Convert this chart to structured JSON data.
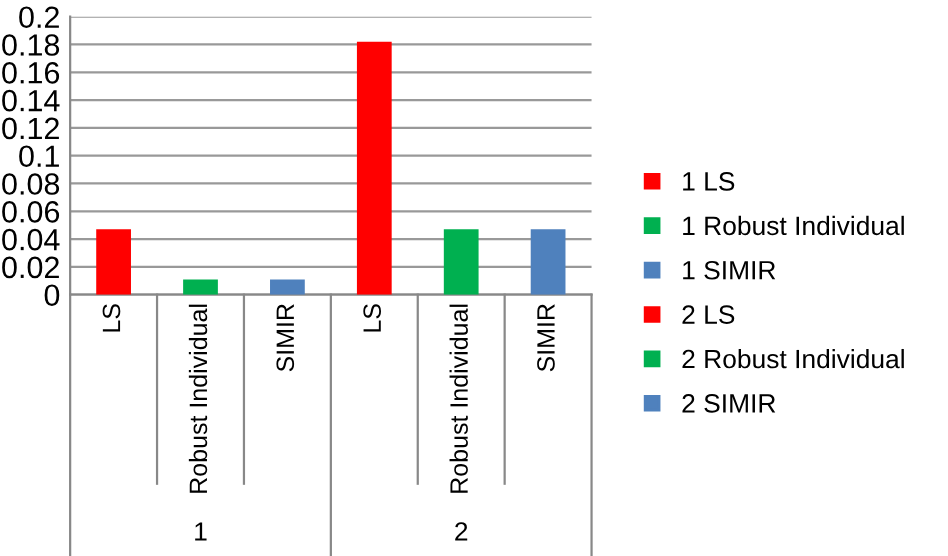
{
  "chart_data": {
    "type": "bar",
    "categories": [
      "LS",
      "Robust Individual",
      "SIMIR",
      "LS",
      "Robust Individual",
      "SIMIR"
    ],
    "series": [
      {
        "name": "1 LS",
        "color": "#ff0000",
        "values": [
          0.047,
          null,
          null,
          null,
          null,
          null
        ]
      },
      {
        "name": "1 Robust Individual",
        "color": "#00b050",
        "values": [
          null,
          0.011,
          null,
          null,
          null,
          null
        ]
      },
      {
        "name": "1 SIMIR",
        "color": "#4f81bd",
        "values": [
          null,
          null,
          0.011,
          null,
          null,
          null
        ]
      },
      {
        "name": "2 LS",
        "color": "#ff0000",
        "values": [
          null,
          null,
          null,
          0.182,
          null,
          null
        ]
      },
      {
        "name": "2 Robust Individual",
        "color": "#00b050",
        "values": [
          null,
          null,
          null,
          null,
          0.047,
          null
        ]
      },
      {
        "name": "2 SIMIR",
        "color": "#4f81bd",
        "values": [
          null,
          null,
          null,
          null,
          null,
          0.047
        ]
      }
    ],
    "annotations": [
      "1",
      "2"
    ],
    "ylim": [
      0,
      0.2
    ],
    "yticks": [
      0,
      0.02,
      0.04,
      0.06,
      0.08,
      0.1,
      0.12,
      0.14,
      0.16,
      0.18,
      0.2
    ],
    "grid": "y",
    "legend": "right"
  }
}
